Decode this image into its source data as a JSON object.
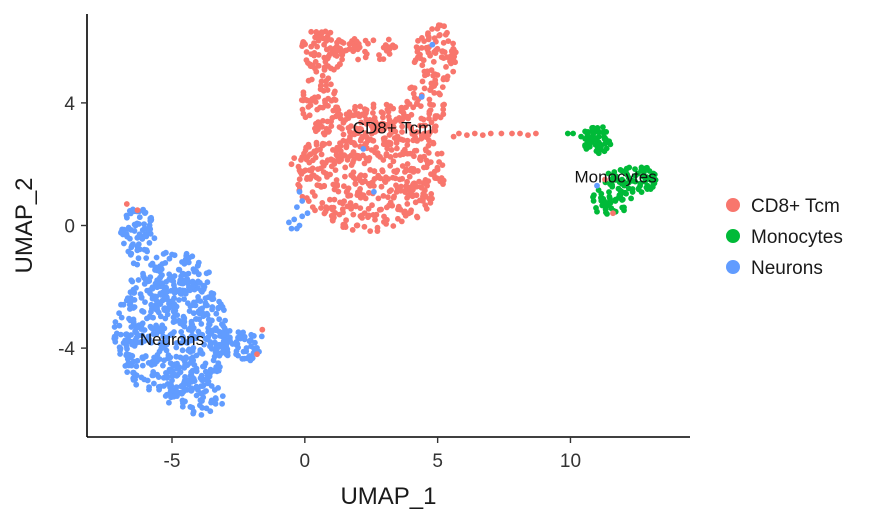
{
  "chart_data": {
    "type": "scatter",
    "title": "",
    "xlabel": "UMAP_1",
    "ylabel": "UMAP_2",
    "xlim": [
      -8.2,
      14.5
    ],
    "ylim": [
      -6.9,
      6.9
    ],
    "xticks": [
      -5,
      0,
      5,
      10
    ],
    "yticks": [
      -4,
      0,
      4
    ],
    "xtick_labels": [
      "-5",
      "0",
      "5",
      "10"
    ],
    "ytick_labels": [
      "-4",
      "0",
      "4"
    ],
    "grid": false,
    "legend_position": "right",
    "series": [
      {
        "name": "CD8+ Tcm",
        "color": "#F8766D",
        "label_at": [
          3.3,
          3.2
        ],
        "regions": [
          {
            "cx": 2.5,
            "cy": 1.7,
            "rx": 2.8,
            "ry": 1.9,
            "n": 460
          },
          {
            "cx": 0.7,
            "cy": 5.7,
            "rx": 0.9,
            "ry": 0.7,
            "n": 70
          },
          {
            "cx": 4.9,
            "cy": 5.5,
            "rx": 0.8,
            "ry": 1.1,
            "n": 80
          },
          {
            "cx": 2.3,
            "cy": 5.8,
            "rx": 1.3,
            "ry": 0.4,
            "n": 40
          },
          {
            "cx": 0.6,
            "cy": 4.0,
            "rx": 0.7,
            "ry": 1.0,
            "n": 60
          },
          {
            "cx": 4.4,
            "cy": 3.8,
            "rx": 0.9,
            "ry": 1.0,
            "n": 70
          },
          {
            "cx": 2.4,
            "cy": 3.4,
            "rx": 1.5,
            "ry": 0.6,
            "n": 60
          }
        ],
        "points": [
          [
            5.6,
            2.9
          ],
          [
            5.8,
            3.0
          ],
          [
            6.1,
            2.95
          ],
          [
            6.4,
            3.0
          ],
          [
            6.7,
            2.95
          ],
          [
            7.0,
            3.0
          ],
          [
            7.4,
            3.0
          ],
          [
            7.8,
            3.0
          ],
          [
            8.1,
            3.0
          ],
          [
            8.4,
            2.95
          ],
          [
            8.7,
            3.0
          ],
          [
            -0.4,
            2.2
          ],
          [
            -0.2,
            1.8
          ],
          [
            -0.5,
            2.0
          ],
          [
            -1.6,
            -3.4
          ],
          [
            -1.8,
            -4.2
          ],
          [
            -6.7,
            0.7
          ],
          [
            0.3,
            0.6
          ],
          [
            11.6,
            0.4
          ],
          [
            11.3,
            1.5
          ],
          [
            -6.3,
            0.5
          ]
        ]
      },
      {
        "name": "Monocytes",
        "color": "#00BA38",
        "label_at": [
          11.7,
          1.6
        ],
        "regions": [
          {
            "cx": 11.0,
            "cy": 2.8,
            "rx": 0.55,
            "ry": 0.45,
            "n": 55
          },
          {
            "cx": 12.3,
            "cy": 1.5,
            "rx": 1.0,
            "ry": 0.45,
            "n": 70
          },
          {
            "cx": 11.5,
            "cy": 0.8,
            "rx": 0.8,
            "ry": 0.45,
            "n": 45
          }
        ],
        "points": [
          [
            9.9,
            3.0
          ],
          [
            10.1,
            3.0
          ],
          [
            10.4,
            2.9
          ],
          [
            10.6,
            2.5
          ],
          [
            12.9,
            1.3
          ],
          [
            13.1,
            1.5
          ]
        ]
      },
      {
        "name": "Neurons",
        "color": "#619CFF",
        "label_at": [
          -5.0,
          -3.7
        ],
        "regions": [
          {
            "cx": -5.0,
            "cy": -3.6,
            "rx": 2.2,
            "ry": 2.0,
            "n": 540
          },
          {
            "cx": -6.3,
            "cy": -0.2,
            "rx": 0.65,
            "ry": 0.8,
            "n": 70
          },
          {
            "cx": -5.2,
            "cy": -1.6,
            "rx": 1.6,
            "ry": 0.7,
            "n": 90
          },
          {
            "cx": -2.4,
            "cy": -3.9,
            "rx": 0.9,
            "ry": 0.5,
            "n": 50
          },
          {
            "cx": -4.0,
            "cy": -5.6,
            "rx": 1.3,
            "ry": 0.6,
            "n": 50
          }
        ],
        "points": [
          [
            -0.3,
            0.6
          ],
          [
            -0.1,
            0.3
          ],
          [
            -0.4,
            0.2
          ],
          [
            -0.2,
            1.1
          ],
          [
            -0.5,
            -0.1
          ],
          [
            0.1,
            0.4
          ],
          [
            -0.6,
            0.1
          ],
          [
            -0.2,
            0.0
          ],
          [
            -0.3,
            -0.1
          ],
          [
            -0.1,
            0.8
          ],
          [
            2.2,
            2.5
          ],
          [
            2.6,
            1.1
          ],
          [
            4.8,
            5.9
          ],
          [
            11.0,
            1.3
          ],
          [
            4.4,
            4.2
          ]
        ]
      }
    ]
  }
}
